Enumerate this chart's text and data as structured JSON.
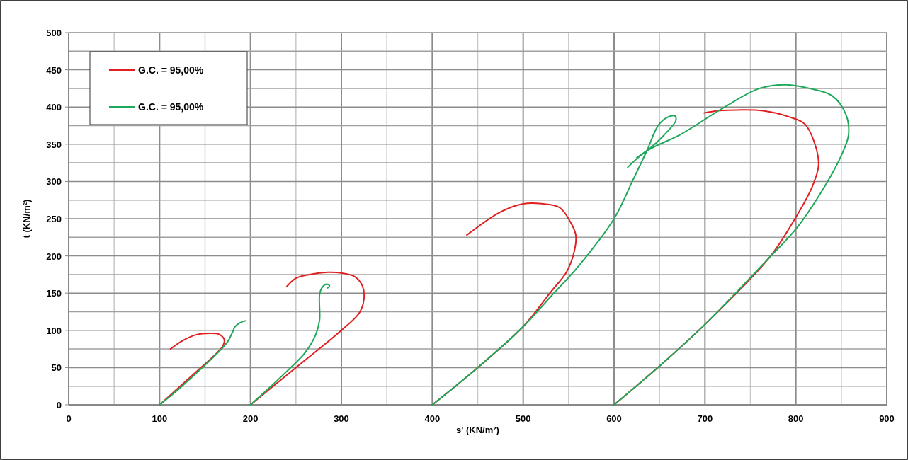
{
  "chart_data": {
    "type": "line",
    "xlabel": "s' (KN/m²)",
    "ylabel": "t (KN/m²)",
    "xlim": [
      0,
      900
    ],
    "ylim": [
      0,
      500
    ],
    "xticks": [
      0,
      {
        "value": 50,
        "label": null
      },
      100,
      {
        "value": 150,
        "label": null
      },
      200,
      {
        "value": 250,
        "label": null
      },
      300,
      {
        "value": 350,
        "label": null
      },
      400,
      {
        "value": 450,
        "label": null
      },
      500,
      {
        "value": 550,
        "label": null
      },
      600,
      {
        "value": 650,
        "label": null
      },
      700,
      {
        "value": 750,
        "label": null
      },
      800,
      {
        "value": 850,
        "label": null
      },
      900
    ],
    "yticks": [
      0,
      {
        "value": 25,
        "label": null
      },
      50,
      {
        "value": 75,
        "label": null
      },
      100,
      {
        "value": 125,
        "label": null
      },
      150,
      {
        "value": 175,
        "label": null
      },
      200,
      {
        "value": 225,
        "label": null
      },
      250,
      {
        "value": 275,
        "label": null
      },
      300,
      {
        "value": 325,
        "label": null
      },
      350,
      {
        "value": 375,
        "label": null
      },
      400,
      {
        "value": 425,
        "label": null
      },
      450,
      {
        "value": 475,
        "label": null
      },
      500
    ],
    "grid": true,
    "legend": "top left",
    "line_style": "solid",
    "series": [
      {
        "name": "G.C. = 95,00%",
        "color": "#e02020",
        "x": [
          100,
          120,
          140,
          160,
          170,
          171,
          165,
          155,
          140,
          125,
          112
        ],
        "values": [
          0,
          22,
          44,
          66,
          80,
          88,
          95,
          96,
          94,
          86,
          75
        ]
      },
      {
        "name": "G.C. = 95,00%",
        "color": "#1fa85a",
        "x": [
          100,
          120,
          140,
          160,
          175,
          180,
          183,
          188,
          195
        ],
        "values": [
          0,
          20,
          42,
          65,
          85,
          97,
          105,
          110,
          113
        ]
      },
      {
        "color": "#e02020",
        "x": [
          200,
          250,
          300,
          320,
          325,
          323,
          315,
          300,
          285,
          265,
          250,
          240
        ],
        "values": [
          0,
          50,
          100,
          124,
          144,
          160,
          172,
          177,
          178,
          175,
          170,
          159
        ]
      },
      {
        "color": "#1fa85a",
        "x": [
          200,
          220,
          240,
          260,
          272,
          276,
          276,
          279,
          284,
          287,
          285
        ],
        "values": [
          0,
          22,
          45,
          70,
          95,
          114,
          148,
          158,
          162,
          160,
          157
        ]
      },
      {
        "color": "#e02020",
        "x": [
          400,
          450,
          500,
          530,
          548,
          556,
          558,
          554,
          540,
          522,
          500,
          475,
          438
        ],
        "values": [
          0,
          50,
          105,
          151,
          179,
          205,
          227,
          241,
          265,
          270,
          270,
          259,
          228
        ]
      },
      {
        "color": "#1fa85a",
        "x": [
          400,
          450,
          500,
          530,
          560,
          600,
          620,
          636,
          649,
          660,
          667,
          668,
          654,
          639,
          625
        ],
        "values": [
          0,
          50,
          105,
          145,
          185,
          250,
          300,
          341,
          376,
          387,
          388,
          382,
          361,
          344,
          332
        ]
      },
      {
        "color": "#e02020",
        "x": [
          600,
          650,
          700,
          771,
          800,
          818,
          825,
          821,
          810,
          792,
          764,
          735,
          714,
          699
        ],
        "values": [
          0,
          52,
          108,
          198,
          252,
          293,
          322,
          350,
          377,
          387,
          395,
          396,
          395,
          392
        ]
      },
      {
        "color": "#1fa85a",
        "x": [
          600,
          650,
          700,
          771,
          800,
          830,
          850,
          858,
          855,
          840,
          815,
          790,
          760,
          719,
          673,
          636,
          615
        ],
        "values": [
          0,
          52,
          108,
          198,
          236,
          290,
          335,
          363,
          390,
          415,
          425,
          430,
          425,
          398,
          363,
          341,
          319
        ]
      }
    ]
  }
}
